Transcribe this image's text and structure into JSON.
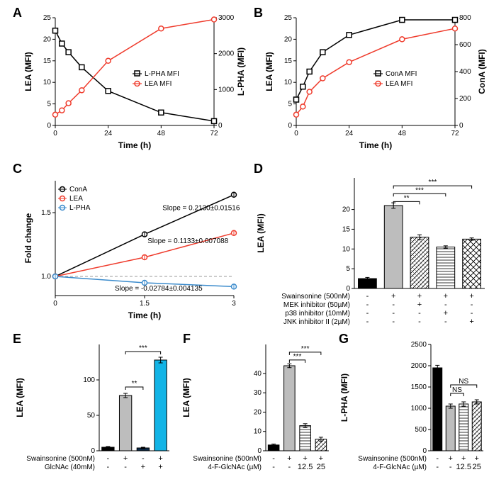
{
  "labels": {
    "A": "A",
    "B": "B",
    "C": "C",
    "D": "D",
    "E": "E",
    "F": "F",
    "G": "G"
  },
  "colors": {
    "black": "#000000",
    "red": "#ef3b2c",
    "blue": "#3b8bcc",
    "cyanbar": "#12b4e6",
    "gray": "#bdbdbd",
    "lightgray": "#d9d9d9",
    "white": "#ffffff"
  },
  "A": {
    "x_label": "Time (h)",
    "y_left_label": "LEA (MFI)",
    "y_right_label": "L-PHA (MFI)",
    "x_ticks": [
      0,
      24,
      48,
      72
    ],
    "y_left_ticks": [
      0,
      5,
      10,
      15,
      20,
      25
    ],
    "y_right_ticks": [
      0,
      1000,
      2000,
      3000
    ],
    "legend": [
      {
        "name": "L-PHA MFI",
        "color": "#000000",
        "marker": "square"
      },
      {
        "name": "LEA MFI",
        "color": "#ef3b2c",
        "marker": "circle"
      }
    ],
    "lpha": {
      "x": [
        0,
        3,
        6,
        12,
        24,
        48,
        72
      ],
      "y": [
        22,
        19,
        17,
        13.5,
        8,
        3,
        1
      ],
      "axis": "left",
      "color": "#000000",
      "marker": "square"
    },
    "lea": {
      "x": [
        0,
        3,
        6,
        12,
        24,
        48,
        72
      ],
      "y": [
        300,
        420,
        620,
        980,
        1800,
        2700,
        2950
      ],
      "axis": "right",
      "color": "#ef3b2c",
      "marker": "circle"
    }
  },
  "B": {
    "x_label": "Time (h)",
    "y_left_label": "LEA (MFI)",
    "y_right_label": "ConA (MFI)",
    "x_ticks": [
      0,
      24,
      48,
      72
    ],
    "y_left_ticks": [
      0,
      5,
      10,
      15,
      20,
      25
    ],
    "y_right_ticks": [
      0,
      200,
      400,
      600,
      800
    ],
    "legend": [
      {
        "name": "ConA MFI",
        "color": "#000000",
        "marker": "square"
      },
      {
        "name": "LEA MFI",
        "color": "#ef3b2c",
        "marker": "circle"
      }
    ],
    "cona": {
      "x": [
        0,
        3,
        6,
        12,
        24,
        48,
        72
      ],
      "y": [
        6,
        9,
        12.5,
        17,
        21,
        24.5,
        24.5
      ],
      "axis": "left",
      "color": "#000000",
      "marker": "square"
    },
    "lea": {
      "x": [
        0,
        3,
        6,
        12,
        24,
        48,
        72
      ],
      "y": [
        80,
        140,
        250,
        350,
        470,
        640,
        720
      ],
      "axis": "right",
      "color": "#ef3b2c",
      "marker": "circle"
    }
  },
  "C": {
    "x_label": "Time (h)",
    "y_label": "Fold change",
    "x_ticks": [
      0,
      1.5,
      3
    ],
    "y_ticks": [
      1.0,
      1.5
    ],
    "legend": [
      {
        "name": "ConA",
        "color": "#000000"
      },
      {
        "name": "LEA",
        "color": "#ef3b2c"
      },
      {
        "name": "L-PHA",
        "color": "#3b8bcc"
      }
    ],
    "slopes": {
      "cona": "Slope = 0.2130±0.01516",
      "lea": "Slope = 0.1133±0.007088",
      "lpha": "Slope = -0.02784±0.004135"
    },
    "cona": {
      "x": [
        0,
        1.5,
        3
      ],
      "y": [
        1.0,
        1.33,
        1.64
      ],
      "color": "#000000",
      "marker": "circle"
    },
    "lea": {
      "x": [
        0,
        1.5,
        3
      ],
      "y": [
        1.0,
        1.15,
        1.34
      ],
      "color": "#ef3b2c",
      "marker": "circle"
    },
    "lpha": {
      "x": [
        0,
        1.5,
        3
      ],
      "y": [
        1.0,
        0.95,
        0.92
      ],
      "color": "#3b8bcc",
      "marker": "circle"
    }
  },
  "D": {
    "y_label": "LEA (MFI)",
    "y_ticks": [
      0,
      5,
      10,
      15,
      20
    ],
    "bars": [
      {
        "value": 2.5,
        "err": 0.3,
        "fill": "#000000"
      },
      {
        "value": 21,
        "err": 0.7,
        "fill": "#bdbdbd"
      },
      {
        "value": 13,
        "err": 0.6,
        "fill": "hatch1"
      },
      {
        "value": 10.5,
        "err": 0.3,
        "fill": "lines"
      },
      {
        "value": 12.5,
        "err": 0.3,
        "fill": "cross"
      }
    ],
    "sig": [
      {
        "from": 1,
        "to": 2,
        "label": "**",
        "y": 22
      },
      {
        "from": 1,
        "to": 3,
        "label": "***",
        "y": 24
      },
      {
        "from": 1,
        "to": 4,
        "label": "***",
        "y": 26
      }
    ],
    "conditions": [
      {
        "name": "Swainsonine (500nM)",
        "vals": [
          "-",
          "+",
          "+",
          "+",
          "+"
        ]
      },
      {
        "name": "MEK inhibitor (50µM)",
        "vals": [
          "-",
          "-",
          "+",
          "-",
          "-"
        ]
      },
      {
        "name": "p38 inhibitor (10mM)",
        "vals": [
          "-",
          "-",
          "-",
          "+",
          "-"
        ]
      },
      {
        "name": "JNK inhibitor II (2µM)",
        "vals": [
          "-",
          "-",
          "-",
          "-",
          "+"
        ]
      }
    ]
  },
  "E": {
    "y_label": "LEA (MFI)",
    "y_ticks": [
      0,
      50,
      100
    ],
    "bars": [
      {
        "value": 5,
        "err": 1,
        "fill": "#000000"
      },
      {
        "value": 78,
        "err": 3,
        "fill": "#bdbdbd"
      },
      {
        "value": 4,
        "err": 1,
        "fill": "#0b2b4a"
      },
      {
        "value": 128,
        "err": 4,
        "fill": "#12b4e6"
      }
    ],
    "sig": [
      {
        "from": 1,
        "to": 2,
        "label": "**",
        "y": 90
      },
      {
        "from": 1,
        "to": 3,
        "label": "***",
        "y": 140
      }
    ],
    "conditions": [
      {
        "name": "Swainsonine (500nM)",
        "vals": [
          "-",
          "+",
          "-",
          "+"
        ]
      },
      {
        "name": "GlcNAc (40mM)",
        "vals": [
          "-",
          "-",
          "+",
          "+"
        ]
      }
    ]
  },
  "F": {
    "y_label": "LEA (MFI)",
    "y_ticks": [
      0,
      10,
      20,
      30,
      40
    ],
    "bars": [
      {
        "value": 3,
        "err": 0.5,
        "fill": "#000000"
      },
      {
        "value": 44,
        "err": 1,
        "fill": "#bdbdbd"
      },
      {
        "value": 13,
        "err": 1,
        "fill": "lines"
      },
      {
        "value": 6,
        "err": 1,
        "fill": "hatch1"
      }
    ],
    "sig": [
      {
        "from": 1,
        "to": 2,
        "label": "***",
        "y": 47
      },
      {
        "from": 1,
        "to": 3,
        "label": "***",
        "y": 51
      }
    ],
    "conditions": [
      {
        "name": "Swainsonine (500nM)",
        "vals": [
          "-",
          "+",
          "+",
          "+"
        ]
      },
      {
        "name": "4-F-GlcNAc (µM)",
        "vals": [
          "-",
          "-",
          "12.5",
          "25"
        ]
      }
    ]
  },
  "G": {
    "y_label": "L-PHA (MFI)",
    "y_ticks": [
      0,
      500,
      1000,
      1500,
      2000,
      2500
    ],
    "bars": [
      {
        "value": 1950,
        "err": 60,
        "fill": "#000000"
      },
      {
        "value": 1050,
        "err": 50,
        "fill": "#bdbdbd"
      },
      {
        "value": 1100,
        "err": 50,
        "fill": "lines"
      },
      {
        "value": 1150,
        "err": 50,
        "fill": "hatch1"
      }
    ],
    "sig": [
      {
        "from": 1,
        "to": 2,
        "label": "NS",
        "y": 1350
      },
      {
        "from": 1,
        "to": 3,
        "label": "NS",
        "y": 1550
      }
    ],
    "conditions": [
      {
        "name": "Swainsonine (500nM)",
        "vals": [
          "-",
          "+",
          "+",
          "+"
        ]
      },
      {
        "name": "4-F-GlcNAc (µM)",
        "vals": [
          "-",
          "-",
          "12.5",
          "25"
        ]
      }
    ]
  }
}
